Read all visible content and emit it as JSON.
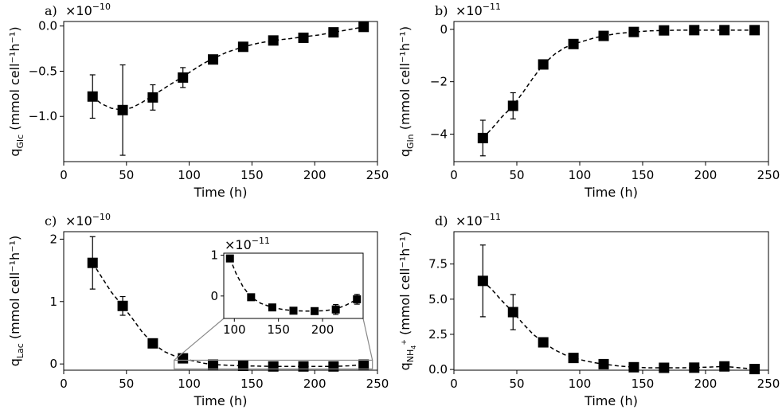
{
  "chart_data": [
    {
      "id": "a",
      "type": "scatter",
      "panel_label": "a)",
      "scale_text": "×10",
      "scale_exp": "−10",
      "scale_factor": 1e-10,
      "xlabel": "Time (h)",
      "ylabel_main": "q",
      "ylabel_sub": "Glc",
      "ylabel_unit": "(mmol cell⁻¹h⁻¹)",
      "xlim": [
        0,
        250
      ],
      "ylim": [
        -1.5,
        0.05
      ],
      "xticks": [
        0,
        50,
        100,
        150,
        200,
        250
      ],
      "xtick_labels": [
        "0",
        "50",
        "100",
        "150",
        "200",
        "250"
      ],
      "yticks": [
        -1.0,
        -0.5,
        0.0
      ],
      "ytick_labels": [
        "−1.0",
        "−0.5",
        "0.0"
      ],
      "x": [
        23,
        47,
        71,
        95,
        119,
        143,
        167,
        191,
        215,
        239
      ],
      "y": [
        -0.78,
        -0.93,
        -0.79,
        -0.57,
        -0.37,
        -0.23,
        -0.16,
        -0.13,
        -0.07,
        -0.01
      ],
      "yerr": [
        0.24,
        0.5,
        0.14,
        0.11,
        0.04,
        0.03,
        0.02,
        0.02,
        0.02,
        0.01
      ],
      "curve_x": [
        23,
        30,
        38,
        47,
        55,
        63,
        71,
        80,
        88,
        95,
        105,
        112,
        119,
        130,
        143,
        155,
        167,
        180,
        191,
        203,
        215,
        227,
        239
      ],
      "curve_y": [
        -0.78,
        -0.86,
        -0.91,
        -0.93,
        -0.9,
        -0.84,
        -0.77,
        -0.69,
        -0.62,
        -0.56,
        -0.47,
        -0.41,
        -0.36,
        -0.29,
        -0.23,
        -0.19,
        -0.16,
        -0.14,
        -0.12,
        -0.1,
        -0.07,
        -0.04,
        -0.01
      ]
    },
    {
      "id": "b",
      "type": "scatter",
      "panel_label": "b)",
      "scale_text": "×10",
      "scale_exp": "−11",
      "scale_factor": 1e-11,
      "xlabel": "Time (h)",
      "ylabel_main": "q",
      "ylabel_sub": "Gln",
      "ylabel_unit": "(mmol cell⁻¹h⁻¹)",
      "xlim": [
        0,
        250
      ],
      "ylim": [
        -5.05,
        0.3
      ],
      "xticks": [
        0,
        50,
        100,
        150,
        200,
        250
      ],
      "xtick_labels": [
        "0",
        "50",
        "100",
        "150",
        "200",
        "250"
      ],
      "yticks": [
        -4,
        -2,
        0
      ],
      "ytick_labels": [
        "−4",
        "−2",
        "0"
      ],
      "x": [
        23,
        47,
        71,
        95,
        119,
        143,
        167,
        191,
        215,
        239
      ],
      "y": [
        -4.15,
        -2.92,
        -1.34,
        -0.56,
        -0.25,
        -0.1,
        -0.04,
        -0.03,
        -0.03,
        -0.03
      ],
      "yerr": [
        0.68,
        0.5,
        0.1,
        0.12,
        0.1,
        0.05,
        0.03,
        0.02,
        0.02,
        0.02
      ],
      "curve_x": [
        23,
        30,
        38,
        47,
        55,
        63,
        71,
        80,
        88,
        95,
        105,
        112,
        119,
        130,
        143,
        155,
        167,
        180,
        191,
        215,
        239
      ],
      "curve_y": [
        -4.15,
        -3.8,
        -3.35,
        -2.92,
        -2.4,
        -1.85,
        -1.34,
        -0.95,
        -0.7,
        -0.56,
        -0.42,
        -0.32,
        -0.25,
        -0.16,
        -0.1,
        -0.06,
        -0.04,
        -0.03,
        -0.03,
        -0.03,
        -0.03
      ]
    },
    {
      "id": "c",
      "type": "scatter",
      "panel_label": "c)",
      "scale_text": "×10",
      "scale_exp": "−10",
      "scale_factor": 1e-10,
      "xlabel": "Time (h)",
      "ylabel_main": "q",
      "ylabel_sub": "Lac",
      "ylabel_unit": "(mmol cell⁻¹h⁻¹)",
      "xlim": [
        0,
        250
      ],
      "ylim": [
        -0.1,
        2.12
      ],
      "xticks": [
        0,
        50,
        100,
        150,
        200,
        250
      ],
      "xtick_labels": [
        "0",
        "50",
        "100",
        "150",
        "200",
        "250"
      ],
      "yticks": [
        0,
        1,
        2
      ],
      "ytick_labels": [
        "0",
        "1",
        "2"
      ],
      "x": [
        23,
        47,
        71,
        95,
        119,
        143,
        167,
        191,
        215,
        239
      ],
      "y": [
        1.62,
        0.93,
        0.33,
        0.09,
        -0.01,
        -0.03,
        -0.04,
        -0.04,
        -0.04,
        -0.01
      ],
      "yerr": [
        0.42,
        0.15,
        0.03,
        0.01,
        0.01,
        0.01,
        0.01,
        0.01,
        0.01,
        0.01
      ],
      "curve_x": [
        23,
        30,
        38,
        47,
        55,
        63,
        71,
        80,
        88,
        95,
        105,
        112,
        119,
        130,
        143,
        155,
        167,
        180,
        191,
        203,
        215,
        227,
        239
      ],
      "curve_y": [
        1.62,
        1.4,
        1.15,
        0.93,
        0.72,
        0.5,
        0.33,
        0.2,
        0.13,
        0.09,
        0.04,
        0.01,
        -0.01,
        -0.02,
        -0.03,
        -0.035,
        -0.04,
        -0.04,
        -0.04,
        -0.04,
        -0.04,
        -0.03,
        -0.01
      ],
      "inset": {
        "scale_text": "×10",
        "scale_exp": "−11",
        "xlim": [
          88,
          246
        ],
        "ylim": [
          -0.55,
          1.05
        ],
        "xticks": [
          100,
          150,
          200
        ],
        "xtick_labels": [
          "100",
          "150",
          "200"
        ],
        "yticks": [
          0,
          1
        ],
        "ytick_labels": [
          "0",
          "1"
        ],
        "x": [
          95,
          119,
          143,
          167,
          191,
          215,
          239
        ],
        "y": [
          0.92,
          -0.03,
          -0.28,
          -0.36,
          -0.37,
          -0.33,
          -0.08
        ],
        "yerr": [
          0.02,
          0.03,
          0.05,
          0.05,
          0.05,
          0.12,
          0.12
        ],
        "curve_x": [
          95,
          102,
          110,
          119,
          130,
          143,
          155,
          167,
          180,
          191,
          203,
          215,
          227,
          239
        ],
        "curve_y": [
          0.92,
          0.55,
          0.22,
          -0.03,
          -0.18,
          -0.28,
          -0.33,
          -0.36,
          -0.37,
          -0.37,
          -0.36,
          -0.32,
          -0.22,
          -0.08
        ],
        "zoom_xlim": [
          88,
          246
        ],
        "zoom_ylim": [
          -0.08,
          0.06
        ]
      }
    },
    {
      "id": "d",
      "type": "scatter",
      "panel_label": "d)",
      "scale_text": "×10",
      "scale_exp": "−11",
      "scale_factor": 1e-11,
      "xlabel": "Time (h)",
      "ylabel_main": "q",
      "ylabel_sub": "NH",
      "ylabel_subsub": "4",
      "ylabel_sup": "+",
      "ylabel_unit": "(mmol cell⁻¹h⁻¹)",
      "xlim": [
        0,
        250
      ],
      "ylim": [
        -0.05,
        9.8
      ],
      "xticks": [
        0,
        50,
        100,
        150,
        200,
        250
      ],
      "xtick_labels": [
        "0",
        "50",
        "100",
        "150",
        "200",
        "250"
      ],
      "yticks": [
        0.0,
        2.5,
        5.0,
        7.5
      ],
      "ytick_labels": [
        "0.0",
        "2.5",
        "5.0",
        "7.5"
      ],
      "x": [
        23,
        47,
        71,
        95,
        119,
        143,
        167,
        191,
        215,
        239
      ],
      "y": [
        6.3,
        4.08,
        1.93,
        0.82,
        0.38,
        0.16,
        0.12,
        0.13,
        0.22,
        0.03
      ],
      "yerr": [
        2.55,
        1.25,
        0.15,
        0.08,
        0.05,
        0.03,
        0.02,
        0.02,
        0.03,
        0.02
      ],
      "curve_x": [
        23,
        30,
        38,
        47,
        55,
        63,
        71,
        80,
        88,
        95,
        105,
        112,
        119,
        130,
        143,
        155,
        167,
        180,
        191,
        203,
        215,
        227,
        239
      ],
      "curve_y": [
        6.3,
        5.7,
        4.9,
        4.08,
        3.25,
        2.5,
        1.93,
        1.4,
        1.05,
        0.82,
        0.6,
        0.48,
        0.38,
        0.26,
        0.16,
        0.12,
        0.12,
        0.12,
        0.13,
        0.17,
        0.22,
        0.12,
        0.03
      ]
    }
  ]
}
